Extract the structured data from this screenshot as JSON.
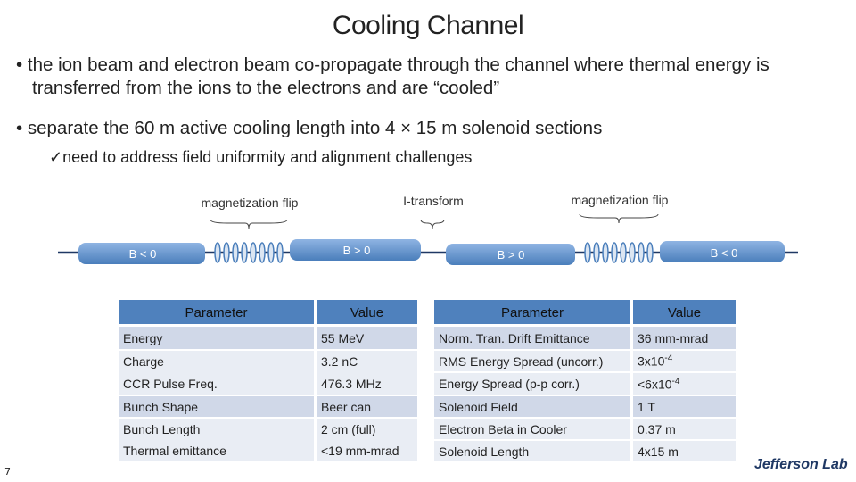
{
  "title": "Cooling Channel",
  "bullets": [
    "the ion beam and electron beam co-propagate through the channel where thermal energy is transferred from the ions to the electrons and are “cooled”",
    "separate the 60 m active cooling length into 4 × 15 m solenoid sections"
  ],
  "sub_bullet": "need to address field uniformity and alignment challenges",
  "diagram": {
    "labels": [
      "magnetization flip",
      "I-transform",
      "magnetization flip"
    ],
    "fields": [
      "B < 0",
      "B > 0",
      "B > 0",
      "B < 0"
    ]
  },
  "left_table": {
    "header": [
      "Parameter",
      "Value"
    ],
    "rows": [
      [
        "Energy",
        "55 MeV"
      ],
      [
        "Charge",
        "3.2 nC"
      ],
      [
        "CCR Pulse Freq.",
        "476.3 MHz"
      ],
      [
        "Bunch Shape",
        "Beer can"
      ],
      [
        "Bunch Length",
        "2 cm (full)"
      ],
      [
        "Thermal emittance",
        "<19 mm-mrad"
      ]
    ]
  },
  "right_table": {
    "header": [
      "Parameter",
      "Value"
    ],
    "rows": [
      [
        "Norm. Tran. Drift Emittance",
        "36 mm-mrad"
      ],
      [
        "RMS Energy Spread (uncorr.)",
        {
          "base": "3x10",
          "exp": "-4"
        }
      ],
      [
        "Energy Spread (p-p corr.)",
        {
          "base": "<6x10",
          "exp": "-4"
        }
      ],
      [
        "Solenoid Field",
        "1 T"
      ],
      [
        "Electron Beta in Cooler",
        "0.37 m"
      ],
      [
        "Solenoid Length",
        "4x15 m"
      ]
    ]
  },
  "page_number": "7",
  "logo": "Jefferson Lab"
}
